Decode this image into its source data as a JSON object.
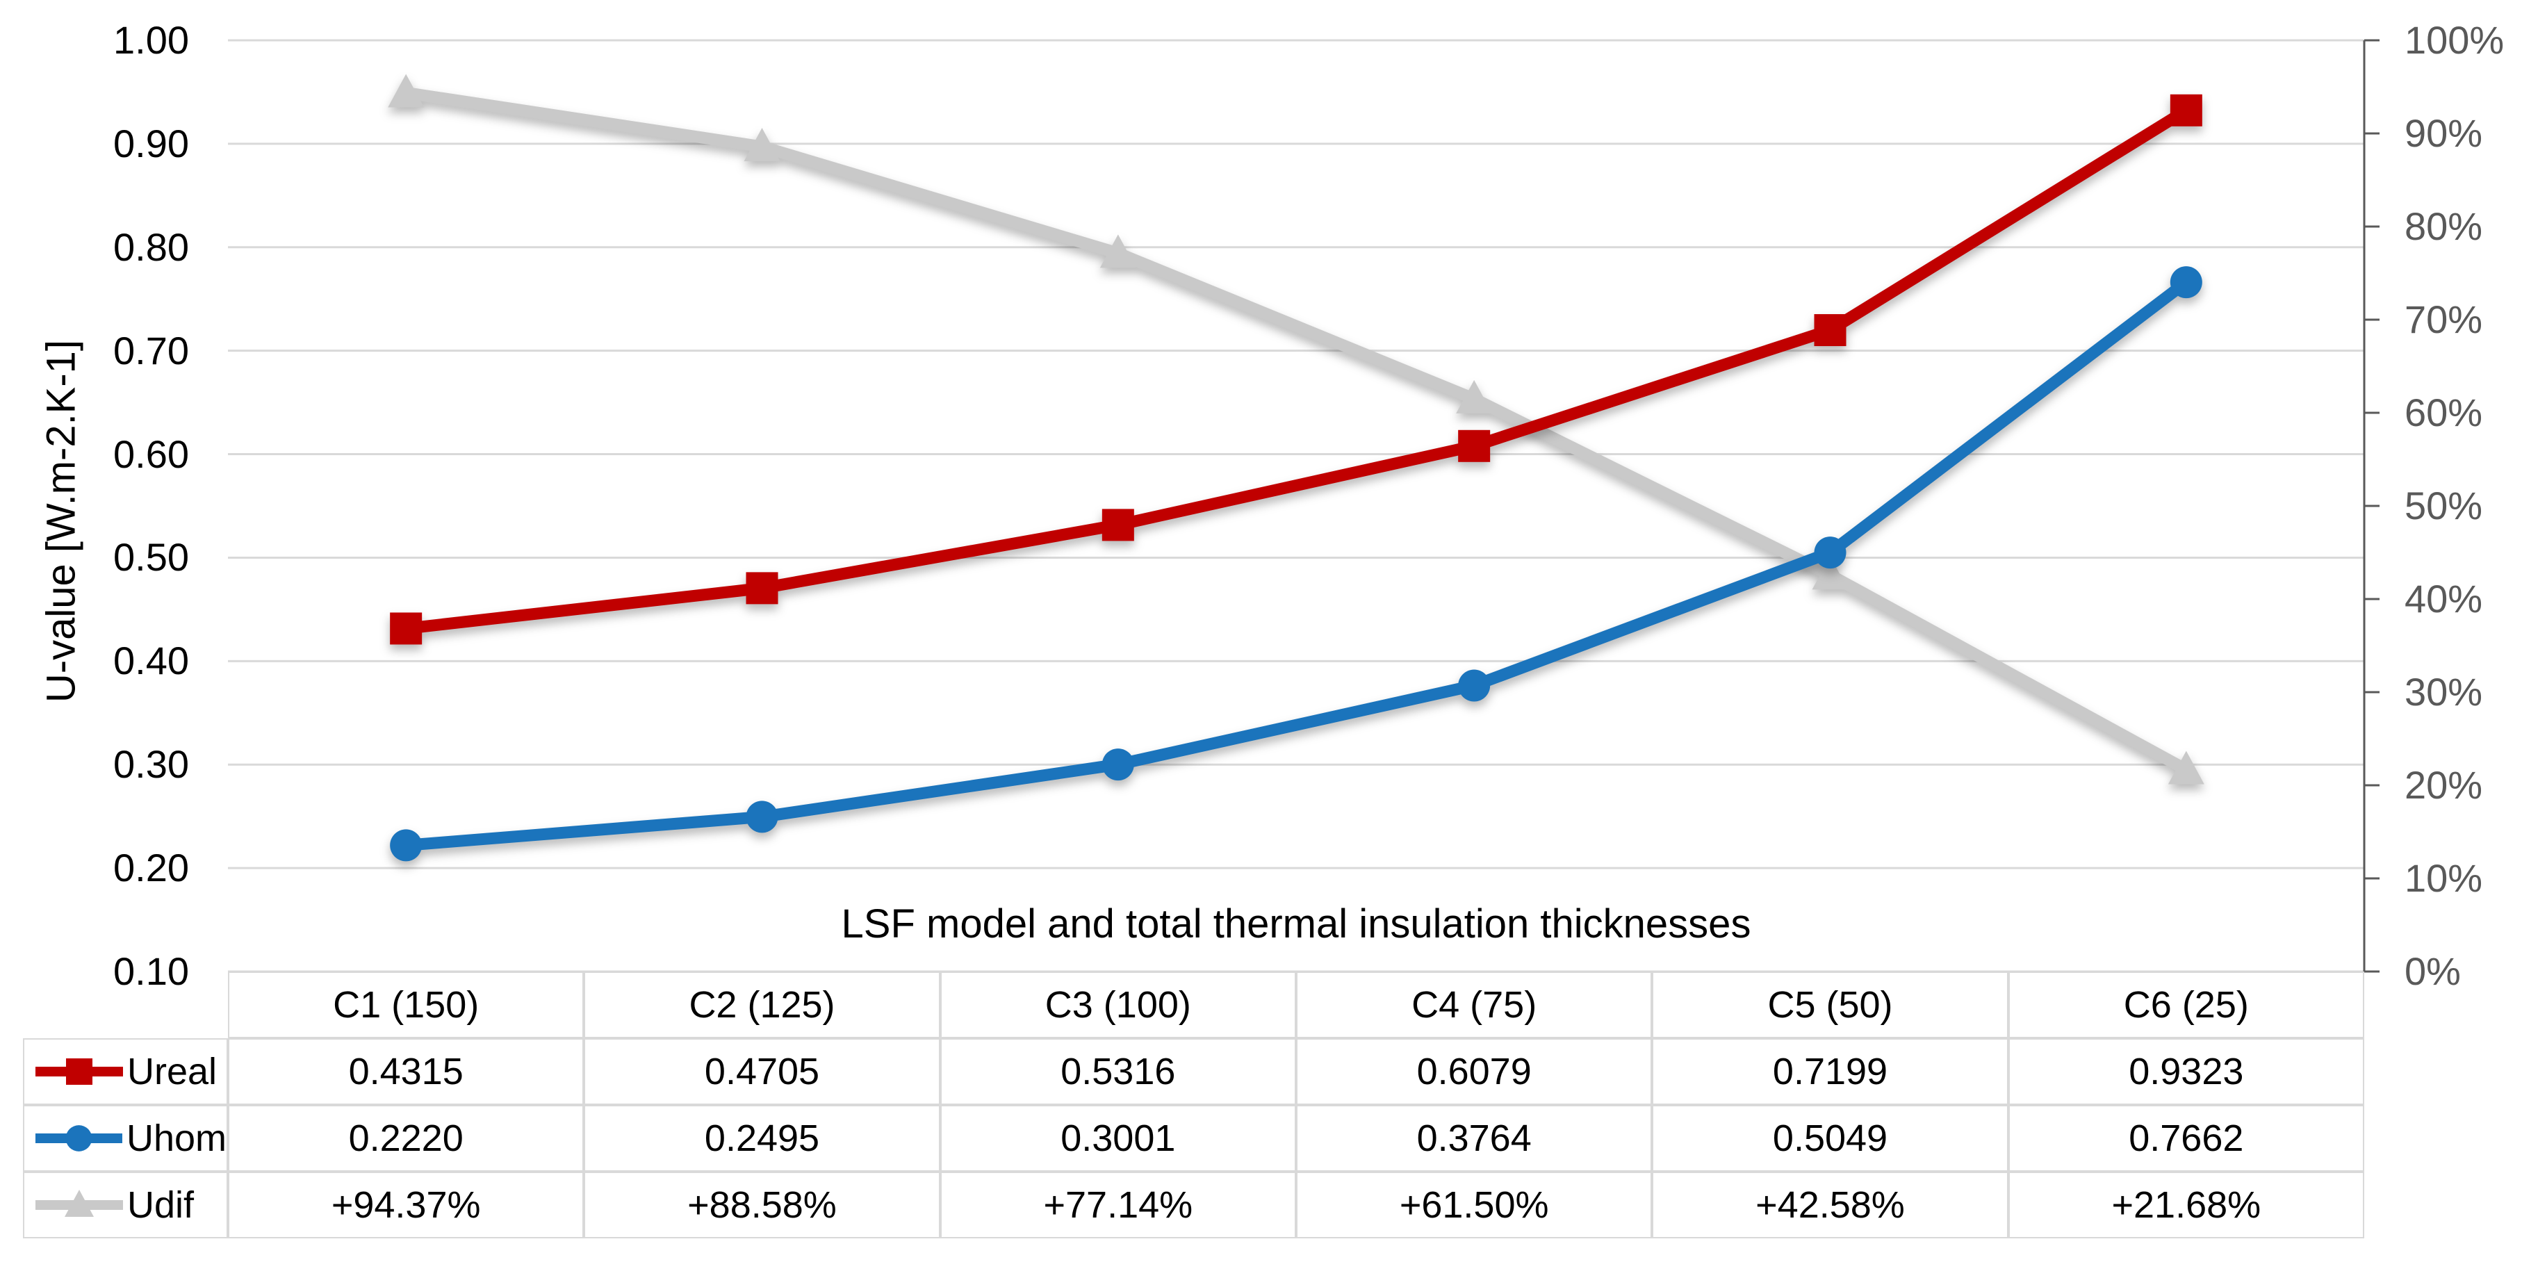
{
  "chart_data": {
    "type": "line",
    "title": "",
    "x_axis_title": "LSF model and total thermal insulation thicknesses",
    "y_axis_title": "U-value [W.m-2.K-1]",
    "categories": [
      "C1 (150)",
      "C2 (125)",
      "C3 (100)",
      "C4 (75)",
      "C5 (50)",
      "C6 (25)"
    ],
    "series": [
      {
        "name": "Ureal",
        "axis": "left",
        "marker": "square",
        "color": "#C00000",
        "values": [
          0.4315,
          0.4705,
          0.5316,
          0.6079,
          0.7199,
          0.9323
        ],
        "labels": [
          "0.4315",
          "0.4705",
          "0.5316",
          "0.6079",
          "0.7199",
          "0.9323"
        ]
      },
      {
        "name": "Uhom",
        "axis": "left",
        "marker": "circle",
        "color": "#1B74BC",
        "values": [
          0.222,
          0.2495,
          0.3001,
          0.3764,
          0.5049,
          0.7662
        ],
        "labels": [
          "0.2220",
          "0.2495",
          "0.3001",
          "0.3764",
          "0.5049",
          "0.7662"
        ]
      },
      {
        "name": "Udif",
        "axis": "right",
        "marker": "triangle",
        "color": "#C9C9C9",
        "values": [
          94.37,
          88.58,
          77.14,
          61.5,
          42.58,
          21.68
        ],
        "labels": [
          "+94.37%",
          "+88.58%",
          "+77.14%",
          "+61.50%",
          "+42.58%",
          "+21.68%"
        ]
      }
    ],
    "left_axis": {
      "min": 0.1,
      "max": 1.0,
      "ticks": [
        "1.00",
        "0.90",
        "0.80",
        "0.70",
        "0.60",
        "0.50",
        "0.40",
        "0.30",
        "0.20",
        "0.10"
      ]
    },
    "right_axis": {
      "min": 0,
      "max": 100,
      "ticks": [
        "100%",
        "90%",
        "80%",
        "70%",
        "60%",
        "50%",
        "40%",
        "30%",
        "20%",
        "10%",
        "0%"
      ]
    },
    "grid": true,
    "legend_position": "data-table-left"
  },
  "colors": {
    "ureal": "#C00000",
    "uhom": "#1B74BC",
    "udif": "#C9C9C9",
    "gridline": "#D9D9D9",
    "right_axis_line": "#595959",
    "right_tick_text": "#595959",
    "table_border": "#D9D9D9",
    "text": "#000000",
    "background": "#FFFFFF"
  }
}
